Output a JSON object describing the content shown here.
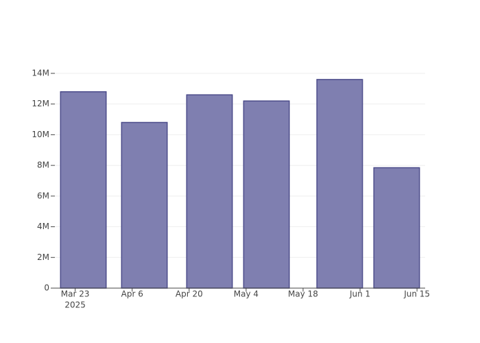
{
  "chart_data": {
    "type": "bar",
    "x": [
      "2025-03-25",
      "2025-04-09",
      "2025-04-25",
      "2025-05-09",
      "2025-05-27",
      "2025-06-10"
    ],
    "values": [
      12800000,
      10800000,
      12600000,
      12200000,
      13600000,
      7850000
    ],
    "color": "#7f7fb0",
    "edge_color": "#4b4b8a",
    "xlim": [
      "2025-03-18",
      "2025-06-17"
    ],
    "xticks": [
      {
        "value": "2025-03-23",
        "label": "Mar 23"
      },
      {
        "value": "2025-04-06",
        "label": "Apr 6"
      },
      {
        "value": "2025-04-20",
        "label": "Apr 20"
      },
      {
        "value": "2025-05-04",
        "label": "May 4"
      },
      {
        "value": "2025-05-18",
        "label": "May 18"
      },
      {
        "value": "2025-06-01",
        "label": "Jun 1"
      },
      {
        "value": "2025-06-15",
        "label": "Jun 15"
      }
    ],
    "x_year_label": "2025",
    "ylim": [
      0,
      14310000
    ],
    "yticks": [
      0,
      {
        "value": 2000000,
        "label": "2M"
      },
      {
        "value": 4000000,
        "label": "4M"
      },
      {
        "value": 6000000,
        "label": "6M"
      },
      {
        "value": 8000000,
        "label": "8M"
      },
      {
        "value": 10000000,
        "label": "10M"
      },
      {
        "value": 12000000,
        "label": "12M"
      },
      {
        "value": 14000000,
        "label": "14M"
      }
    ],
    "grid": true
  }
}
